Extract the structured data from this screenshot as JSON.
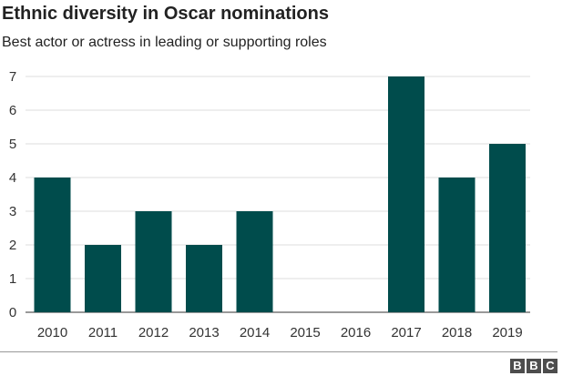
{
  "chart_data": {
    "type": "bar",
    "title": "Ethnic diversity in Oscar nominations",
    "subtitle": "Best actor or actress in leading or supporting roles",
    "categories": [
      "2010",
      "2011",
      "2012",
      "2013",
      "2014",
      "2015",
      "2016",
      "2017",
      "2018",
      "2019"
    ],
    "values": [
      4,
      2,
      3,
      2,
      3,
      0,
      0,
      7,
      4,
      5
    ],
    "ylim": [
      0,
      7
    ],
    "yticks": [
      0,
      1,
      2,
      3,
      4,
      5,
      6,
      7
    ],
    "grid": true,
    "bar_color": "#004c4c",
    "grid_color": "#dddddd"
  },
  "footer": {
    "logo_letters": [
      "B",
      "B",
      "C"
    ]
  }
}
